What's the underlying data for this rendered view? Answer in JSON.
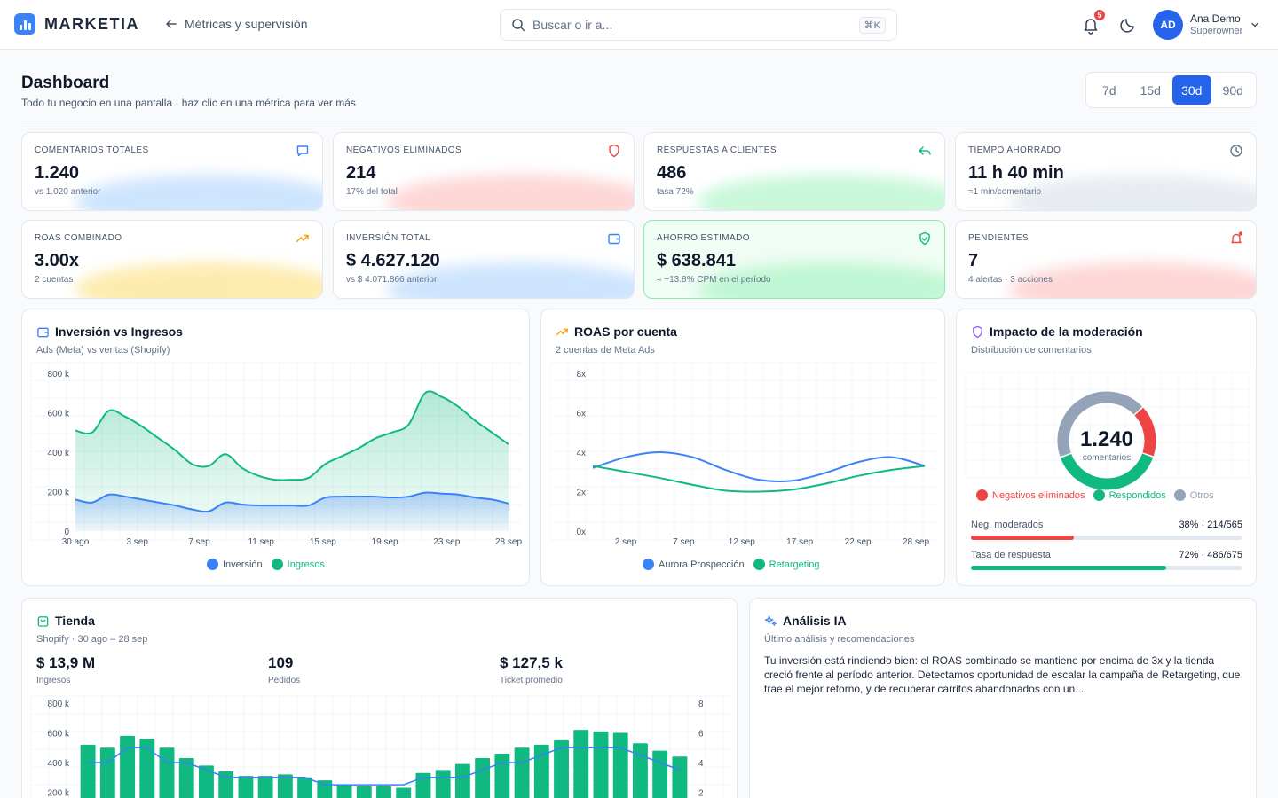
{
  "brand": {
    "name": "MARKETIA"
  },
  "header": {
    "back_label": "Métricas y supervisión",
    "search_placeholder": "Buscar o ir a...",
    "search_shortcut": "⌘K",
    "notifications_count": "5",
    "user": {
      "initials": "AD",
      "name": "Ana Demo",
      "role": "Superowner"
    }
  },
  "page": {
    "title": "Dashboard",
    "subtitle": "Todo tu negocio en una pantalla · haz clic en una métrica para ver más",
    "ranges": [
      "7d",
      "15d",
      "30d",
      "90d"
    ],
    "active_range": "30d"
  },
  "kpis": [
    {
      "label": "COMENTARIOS TOTALES",
      "value": "1.240",
      "note": "vs 1.020 anterior",
      "icon": "chat-icon",
      "color": "#3b82f6"
    },
    {
      "label": "NEGATIVOS ELIMINADOS",
      "value": "214",
      "note": "17% del total",
      "icon": "shield-icon",
      "color": "#ef4444"
    },
    {
      "label": "RESPUESTAS A CLIENTES",
      "value": "486",
      "note": "tasa 72%",
      "icon": "reply-icon",
      "color": "#10b981"
    },
    {
      "label": "TIEMPO AHORRADO",
      "value": "11 h 40 min",
      "note": "≈1 min/comentario",
      "icon": "clock-icon",
      "color": "#64748b"
    },
    {
      "label": "ROAS COMBINADO",
      "value": "3.00x",
      "note": "2 cuentas",
      "icon": "trend-up-icon",
      "color": "#f59e0b"
    },
    {
      "label": "INVERSIÓN TOTAL",
      "value": "$ 4.627.120",
      "note": "vs $ 4.071.866 anterior",
      "icon": "wallet-icon",
      "color": "#3b82f6"
    },
    {
      "label": "AHORRO ESTIMADO",
      "value": "$ 638.841",
      "note": "≈ −13.8% CPM en el período",
      "icon": "shield-check-icon",
      "color": "#10b981"
    },
    {
      "label": "PENDIENTES",
      "value": "7",
      "note": "4 alertas · 3 acciones",
      "icon": "bell-alert-icon",
      "color": "#ef4444"
    }
  ],
  "panels": {
    "inversion": {
      "title": "Inversión vs Ingresos",
      "subtitle": "Ads (Meta) vs ventas (Shopify)"
    },
    "roas": {
      "title": "ROAS por cuenta",
      "subtitle": "2 cuentas de Meta Ads"
    },
    "impacto": {
      "title": "Impacto de la moderación",
      "subtitle": "Distribución de comentarios",
      "rows": [
        {
          "label": "Neg. moderados",
          "value": "38% · 214/565",
          "pct": 38,
          "color": "#ef4444"
        },
        {
          "label": "Tasa de respuesta",
          "value": "72% · 486/675",
          "pct": 72,
          "color": "#10b981"
        }
      ]
    },
    "tienda": {
      "title": "Tienda",
      "subtitle": "Shopify · 30 ago – 28 sep",
      "stats": [
        {
          "value": "$ 13,9 M",
          "label": "Ingresos"
        },
        {
          "value": "109",
          "label": "Pedidos"
        },
        {
          "value": "$ 127,5 k",
          "label": "Ticket promedio"
        }
      ]
    },
    "ia": {
      "title": "Análisis IA",
      "subtitle": "Último análisis y recomendaciones",
      "text": "Tu inversión está rindiendo bien: el ROAS combinado se mantiene por encima de 3x y la tienda creció frente al período anterior. Detectamos oportunidad de escalar la campaña de Retargeting, que trae el mejor retorno, y de recuperar carritos abandonados con un..."
    }
  },
  "chart_data": [
    {
      "type": "area",
      "title": "Inversión vs Ingresos",
      "x_ticks": [
        "30 ago",
        "3 sep",
        "7 sep",
        "11 sep",
        "15 sep",
        "19 sep",
        "23 sep",
        "28 sep"
      ],
      "y_ticks": [
        "0",
        "200 k",
        "400 k",
        "600 k",
        "800 k"
      ],
      "ylim": [
        0,
        800000
      ],
      "series": [
        {
          "name": "Inversión",
          "color": "#3b82f6",
          "values": [
            160000,
            145000,
            185000,
            175000,
            160000,
            145000,
            130000,
            110000,
            100000,
            145000,
            135000,
            130000,
            130000,
            130000,
            130000,
            170000,
            175000,
            175000,
            175000,
            170000,
            175000,
            195000,
            190000,
            185000,
            170000,
            160000,
            140000
          ]
        },
        {
          "name": "Ingresos",
          "color": "#10b981",
          "values": [
            510000,
            500000,
            610000,
            580000,
            530000,
            470000,
            410000,
            340000,
            330000,
            390000,
            320000,
            280000,
            260000,
            260000,
            270000,
            340000,
            380000,
            420000,
            470000,
            500000,
            540000,
            700000,
            680000,
            630000,
            560000,
            500000,
            440000
          ]
        }
      ]
    },
    {
      "type": "line",
      "title": "ROAS por cuenta",
      "x_ticks": [
        "2 sep",
        "7 sep",
        "12 sep",
        "17 sep",
        "22 sep",
        "28 sep"
      ],
      "y_ticks": [
        "0x",
        "2x",
        "4x",
        "6x",
        "8x"
      ],
      "ylim": [
        0,
        8
      ],
      "series": [
        {
          "name": "Aurora Prospección",
          "color": "#3b82f6",
          "values": [
            3.2,
            3.75,
            4.0,
            3.75,
            3.1,
            2.6,
            2.55,
            2.95,
            3.5,
            3.75,
            3.3
          ]
        },
        {
          "name": "Retargeting",
          "color": "#10b981",
          "values": [
            3.3,
            3.0,
            2.7,
            2.35,
            2.05,
            2.0,
            2.1,
            2.4,
            2.8,
            3.1,
            3.3
          ]
        }
      ]
    },
    {
      "type": "pie",
      "title": "Impacto de la moderación",
      "center_value": "1.240",
      "center_label": "comentarios",
      "slices": [
        {
          "name": "Negativos eliminados",
          "value": 214,
          "color": "#ef4444"
        },
        {
          "name": "Respondidos",
          "value": 486,
          "color": "#10b981"
        },
        {
          "name": "Otros",
          "value": 540,
          "color": "#94a3b8"
        }
      ]
    },
    {
      "type": "bar",
      "title": "Tienda",
      "y_ticks_left": [
        "200 k",
        "400 k",
        "600 k",
        "800 k"
      ],
      "y_ticks_right": [
        "2",
        "4",
        "6",
        "8"
      ],
      "ylim_left": [
        0,
        800000
      ],
      "ylim_right": [
        0,
        8
      ],
      "series": [
        {
          "name": "Ingresos",
          "color": "#10b981",
          "values": [
            520000,
            500000,
            580000,
            560000,
            500000,
            430000,
            380000,
            340000,
            310000,
            310000,
            320000,
            300000,
            280000,
            250000,
            240000,
            240000,
            230000,
            330000,
            350000,
            390000,
            430000,
            460000,
            500000,
            520000,
            550000,
            620000,
            610000,
            600000,
            530000,
            480000,
            440000
          ]
        },
        {
          "name": "Pedidos",
          "color": "#3b82f6",
          "values": [
            4,
            4,
            5,
            5,
            4,
            4,
            3.5,
            3,
            3,
            3,
            3,
            3,
            2.5,
            2.5,
            2.5,
            2.5,
            2.5,
            3,
            3,
            3,
            3.5,
            4,
            4,
            4.5,
            5,
            5,
            5,
            5,
            4.5,
            4,
            3.5
          ]
        }
      ]
    }
  ]
}
